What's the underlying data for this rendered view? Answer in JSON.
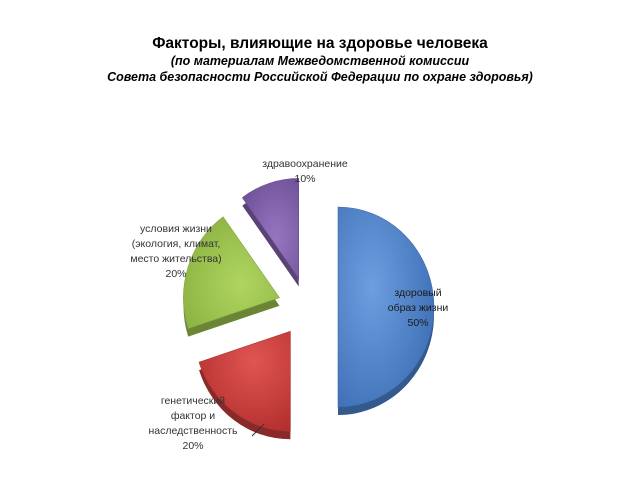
{
  "title": "Факторы, влияющие на здоровье человека",
  "subtitle_line1": "(по материалам Межведомственной комиссии",
  "subtitle_line2": "Совета безопасности Российской Федерации по охране здоровья)",
  "chart_data": {
    "type": "pie",
    "exploded": true,
    "three_d": true,
    "title": "Факторы, влияющие на здоровье человека",
    "slices": [
      {
        "key": "healthy-lifestyle",
        "label_lines": [
          "здоровый",
          "образ жизни",
          "50%"
        ],
        "value": 50,
        "color": "#4a7fc9",
        "label_inside": true
      },
      {
        "key": "genetics",
        "label_lines": [
          "генетический",
          "фактор и",
          "наследственность",
          "20%"
        ],
        "value": 20,
        "color": "#c43c3a",
        "label_inside": false
      },
      {
        "key": "living-conditions",
        "label_lines": [
          "условия жизни",
          "(экология, климат,",
          "место жительства)",
          "20%"
        ],
        "value": 20,
        "color": "#97c04b",
        "label_inside": false
      },
      {
        "key": "healthcare",
        "label_lines": [
          "здравоохранение",
          "10%"
        ],
        "value": 10,
        "color": "#7d5ea8",
        "label_inside": false
      }
    ]
  }
}
